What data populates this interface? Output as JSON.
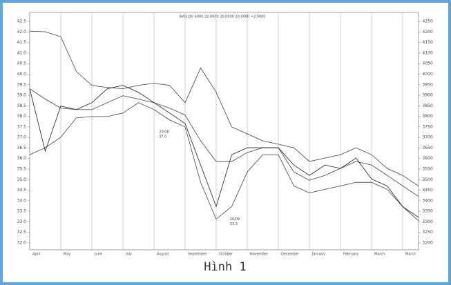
{
  "chart_data": {
    "type": "line",
    "title": "AVG(20) 4000 20.0000 20.0000 20.0000 +2.0000",
    "caption": "Hình 1",
    "x": [
      0,
      0.5,
      1,
      1.5,
      2,
      2.5,
      3,
      3.5,
      4,
      4.5,
      5,
      5.5,
      6,
      6.5,
      7,
      7.5,
      8,
      8.5,
      9,
      9.5,
      10,
      10.5,
      11,
      11.5,
      12,
      12.5
    ],
    "series": [
      {
        "color": "#555555",
        "values": [
          42.04,
          42.01,
          41.78,
          40.13,
          39.47,
          39.37,
          39.31,
          39.47,
          39.57,
          39.47,
          38.65,
          40.3,
          39.14,
          37.5,
          37.17,
          36.84,
          36.68,
          36.51,
          35.86,
          36.02,
          36.18,
          36.51,
          36.18,
          35.53,
          35.2,
          34.7
        ]
      },
      {
        "color": "#555555",
        "values": [
          39.31,
          38.82,
          38.39,
          38.32,
          38.32,
          38.65,
          38.98,
          38.82,
          38.65,
          38.39,
          38.06,
          36.84,
          35.86,
          35.86,
          36.28,
          36.51,
          36.51,
          35.36,
          34.97,
          35.2,
          35.53,
          35.86,
          35.69,
          35.2,
          34.7,
          34.21
        ]
      },
      {
        "color": "#555555",
        "values": [
          36.18,
          36.51,
          37.01,
          37.93,
          37.99,
          37.99,
          38.16,
          38.65,
          38.32,
          37.83,
          37.5,
          34.87,
          33.12,
          33.72,
          35.36,
          36.18,
          36.18,
          34.7,
          34.37,
          34.54,
          34.7,
          34.87,
          34.87,
          34.54,
          33.72,
          33.06
        ]
      },
      {
        "color": "#333333",
        "values": [
          39.31,
          36.35,
          38.49,
          38.32,
          38.65,
          39.31,
          39.47,
          39.14,
          38.65,
          38.16,
          37.66,
          35.69,
          33.72,
          36.18,
          36.51,
          36.51,
          36.51,
          35.69,
          35.2,
          35.69,
          35.53,
          36.02,
          35.03,
          34.7,
          33.72,
          33.22
        ]
      }
    ],
    "xlim": [
      0,
      12.5
    ],
    "xticks": [
      {
        "value": 0,
        "label": "April"
      },
      {
        "value": 1,
        "label": "May"
      },
      {
        "value": 2,
        "label": "June"
      },
      {
        "value": 3,
        "label": "July"
      },
      {
        "value": 4,
        "label": "August"
      },
      {
        "value": 5,
        "label": "September"
      },
      {
        "value": 6,
        "label": "October"
      },
      {
        "value": 7,
        "label": "November"
      },
      {
        "value": 8,
        "label": "December"
      },
      {
        "value": 9,
        "label": "January"
      },
      {
        "value": 10,
        "label": "February"
      },
      {
        "value": 11,
        "label": "March"
      },
      {
        "value": 12,
        "label": "March"
      }
    ],
    "ylim": [
      31.67,
      42.93
    ],
    "yticks": [
      {
        "value": 32,
        "label": "32.0"
      },
      32.5,
      {
        "value": 33,
        "label": "33.0"
      },
      33.5,
      {
        "value": 34,
        "label": "34.0"
      },
      34.5,
      {
        "value": 35,
        "label": "35.0"
      },
      35.5,
      {
        "value": 36,
        "label": "36.0"
      },
      36.5,
      {
        "value": 37,
        "label": "37.0"
      },
      37.5,
      {
        "value": 38,
        "label": "38.0"
      },
      38.5,
      {
        "value": 39,
        "label": "39.0"
      },
      39.5,
      {
        "value": 40,
        "label": "40.0"
      },
      40.5,
      {
        "value": 41,
        "label": "41.0"
      },
      41.5,
      {
        "value": 42,
        "label": "42.0"
      },
      42.5
    ],
    "y2lim": [
      3167,
      4293
    ],
    "y2ticks": [
      3200,
      3250,
      3300,
      3350,
      3400,
      3450,
      3500,
      3550,
      3600,
      3650,
      3700,
      3750,
      3800,
      3850,
      3900,
      3950,
      4000,
      4050,
      4100,
      4150,
      4200,
      4250
    ],
    "grid": true,
    "annotations": [
      {
        "lines": [
          "20/08",
          "37.0"
        ],
        "x": 4.16,
        "y": 37.27
      },
      {
        "lines": [
          "20/09",
          "33.3"
        ],
        "x": 6.44,
        "y": 33.12
      }
    ]
  }
}
